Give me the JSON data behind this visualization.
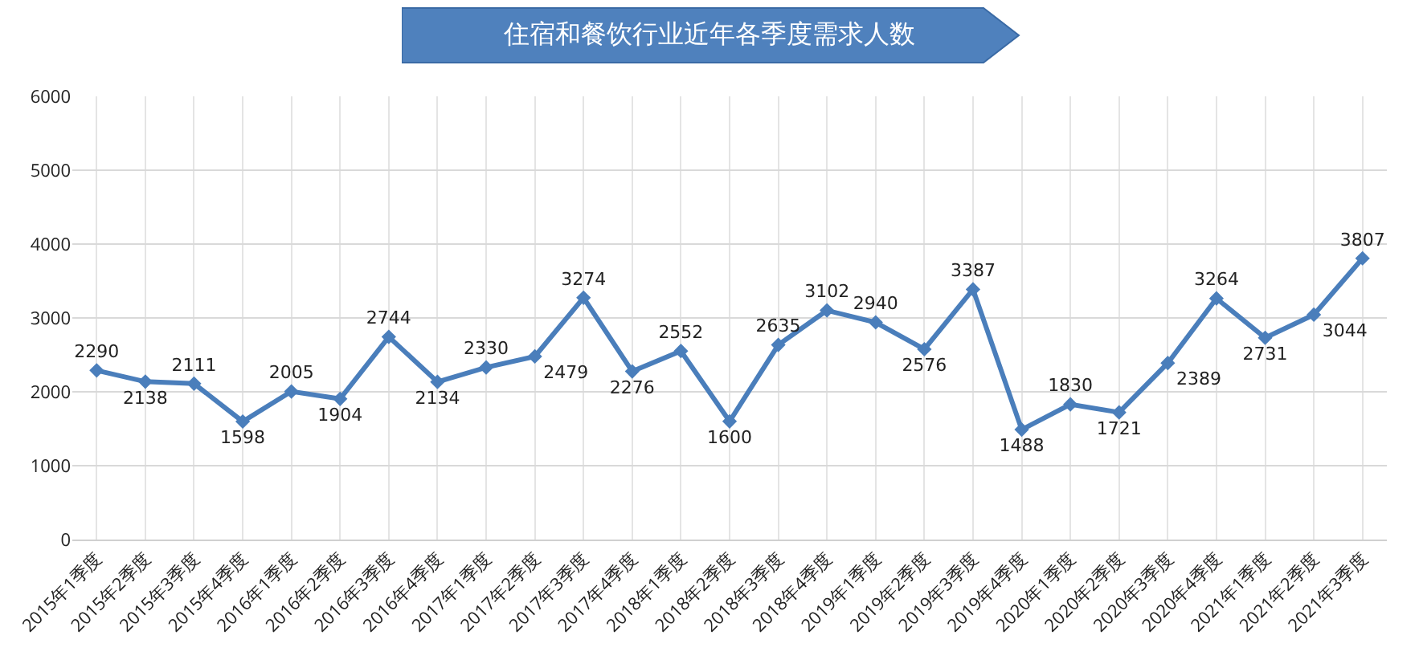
{
  "chart_data": {
    "type": "line",
    "title": "住宿和餐饮行业近年各季度需求人数",
    "categories": [
      "2015年1季度",
      "2015年2季度",
      "2015年3季度",
      "2015年4季度",
      "2016年1季度",
      "2016年2季度",
      "2016年3季度",
      "2016年4季度",
      "2017年1季度",
      "2017年2季度",
      "2017年3季度",
      "2017年4季度",
      "2018年1季度",
      "2018年2季度",
      "2018年3季度",
      "2018年4季度",
      "2019年1季度",
      "2019年2季度",
      "2019年3季度",
      "2019年4季度",
      "2020年1季度",
      "2020年2季度",
      "2020年3季度",
      "2020年4季度",
      "2021年1季度",
      "2021年2季度",
      "2021年3季度"
    ],
    "series": [
      {
        "color": "#4a7ebb",
        "values": [
          2290,
          2138,
          2111,
          1598,
          2005,
          1904,
          2744,
          2134,
          2330,
          2479,
          3274,
          2276,
          2552,
          1600,
          2635,
          3102,
          2940,
          2576,
          3387,
          1488,
          1830,
          1721,
          2389,
          3264,
          2731,
          3044,
          3807
        ]
      }
    ],
    "ylim": [
      0,
      6000
    ],
    "yticks": [
      0,
      1000,
      2000,
      3000,
      4000,
      5000,
      6000
    ],
    "grid": true,
    "marker": "diamond",
    "line_style": "solid",
    "data_labels": true
  }
}
